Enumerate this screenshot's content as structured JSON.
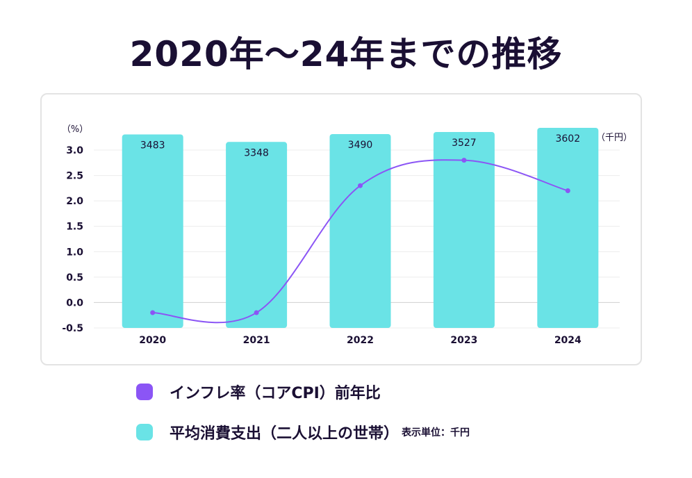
{
  "title": "2020年～24年までの推移",
  "legend": {
    "line_label": "インフレ率（コアCPI）前年比",
    "bar_label": "平均消費支出（二人以上の世帯）",
    "bar_note": "表示単位：千円"
  },
  "colors": {
    "bar": "#6ae3e6",
    "line": "#8b55f5",
    "title": "#1a0f33"
  },
  "chart_data": {
    "type": "bar",
    "categories": [
      "2020",
      "2021",
      "2022",
      "2023",
      "2024"
    ],
    "series": [
      {
        "name": "平均消費支出（二人以上の世帯）",
        "type": "bar",
        "unit": "（千円）",
        "values": [
          3483,
          3348,
          3490,
          3527,
          3602
        ]
      },
      {
        "name": "インフレ率（コアCPI）前年比",
        "type": "line",
        "unit": "（%）",
        "values": [
          -0.2,
          -0.2,
          2.3,
          2.8,
          2.2
        ]
      }
    ],
    "left_axis": {
      "unit_label": "（%）",
      "ticks": [
        "3.0",
        "2.5",
        "2.0",
        "1.5",
        "1.0",
        "0.5",
        "0.0",
        "-0.5"
      ],
      "range": [
        -0.5,
        3.0
      ]
    },
    "right_axis": {
      "unit_label": "（千円）"
    },
    "grid": true,
    "legend_position": "bottom"
  }
}
